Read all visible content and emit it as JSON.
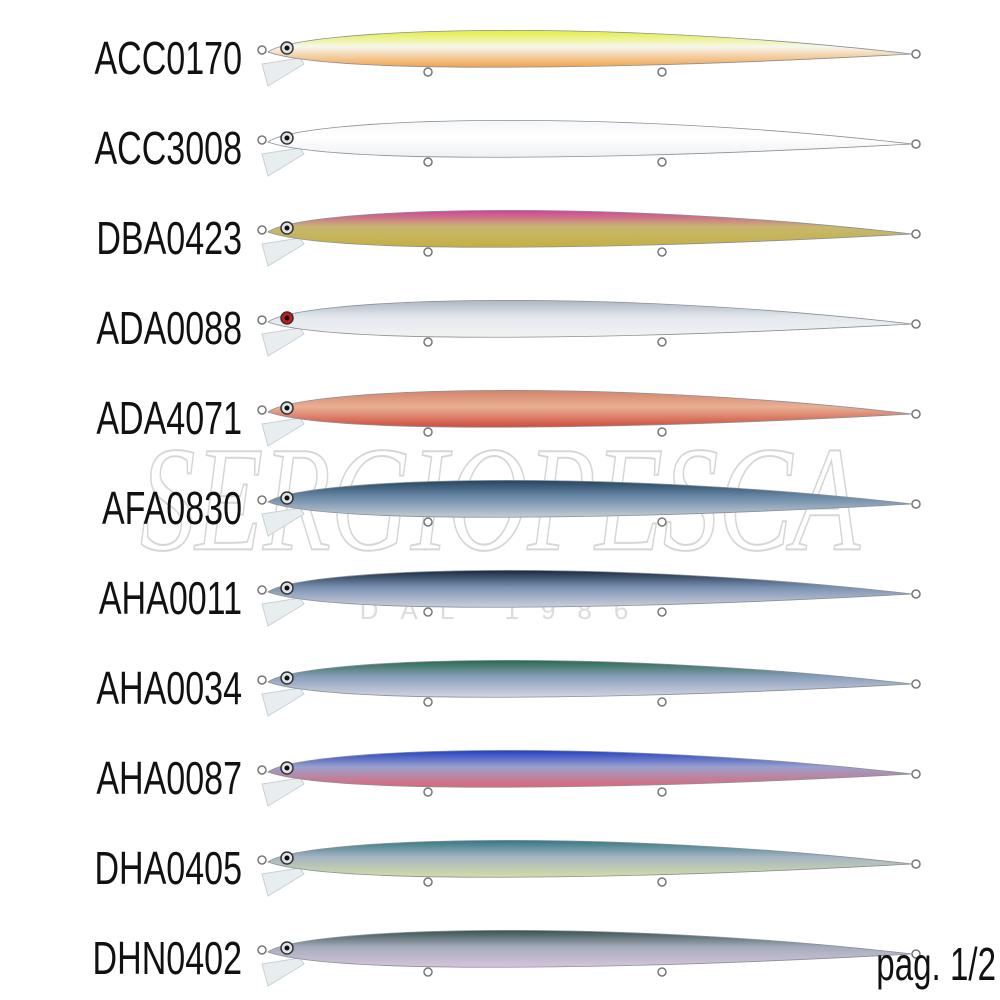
{
  "catalog": {
    "items": [
      {
        "label": "ACC0170"
      },
      {
        "label": "ACC3008"
      },
      {
        "label": "DBA0423"
      },
      {
        "label": "ADA0088"
      },
      {
        "label": "ADA4071"
      },
      {
        "label": "AFA0830"
      },
      {
        "label": "AHA0011"
      },
      {
        "label": "AHA0034"
      },
      {
        "label": "AHA0087"
      },
      {
        "label": "DHA0405"
      },
      {
        "label": "DHN0402"
      }
    ],
    "page": "pag. 1/2",
    "watermark": {
      "brand": "SERGIOPESCA",
      "since": "DAL 1986"
    }
  }
}
